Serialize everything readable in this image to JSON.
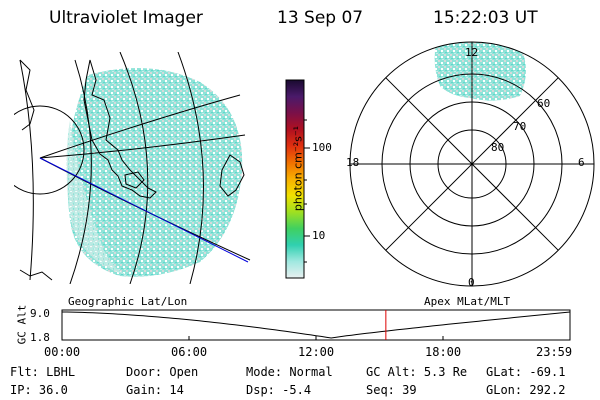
{
  "header": {
    "instrument": "Ultraviolet Imager",
    "date": "13 Sep 07",
    "time": "15:22:03 UT"
  },
  "colors": {
    "aurora_main": "#7fe0d4",
    "aurora_light": "#c9ede8",
    "aurora_gray": "#d2d6d6",
    "trajectory": "#0000dd",
    "timeline_marker": "#dd0000"
  },
  "colorbar": {
    "label": "photon cm⁻²s⁻¹",
    "ticks": [
      "100",
      "10"
    ],
    "stops": [
      "#1a0a30",
      "#4a1a6a",
      "#7a1048",
      "#b01020",
      "#e03010",
      "#f07000",
      "#f8b000",
      "#f0e000",
      "#a0e020",
      "#40d060",
      "#30d0b0",
      "#a0e8e0",
      "#e8f0f0"
    ]
  },
  "polar_plot": {
    "mlt_labels": {
      "top": "12",
      "left": "18",
      "right": "6",
      "bottom": "0"
    },
    "lat_labels": [
      "60",
      "70",
      "80"
    ]
  },
  "labels": {
    "left_panel": "Geographic Lat/Lon",
    "right_panel": "Apex MLat/MLT"
  },
  "timeline": {
    "y_axis_label": "GC Alt",
    "y_max": "9.0",
    "y_min": "1.8",
    "ticks": [
      "00:00",
      "06:00",
      "12:00",
      "18:00",
      "23:59"
    ],
    "current_time_fraction": 0.6375
  },
  "info": {
    "filter": {
      "label": "Flt:",
      "value": "LBHL"
    },
    "ip": {
      "label": "IP:",
      "value": "36.0"
    },
    "door": {
      "label": "Door:",
      "value": "Open"
    },
    "gain": {
      "label": "Gain:",
      "value": "14"
    },
    "mode": {
      "label": "Mode:",
      "value": "Normal"
    },
    "dsp": {
      "label": "Dsp:",
      "value": "-5.4"
    },
    "gc_alt": {
      "label": "GC Alt:",
      "value": "5.3 Re"
    },
    "seq": {
      "label": "Seq:",
      "value": "39"
    },
    "glat": {
      "label": "GLat:",
      "value": "-69.1"
    },
    "glon": {
      "label": "GLon:",
      "value": "292.2"
    }
  }
}
